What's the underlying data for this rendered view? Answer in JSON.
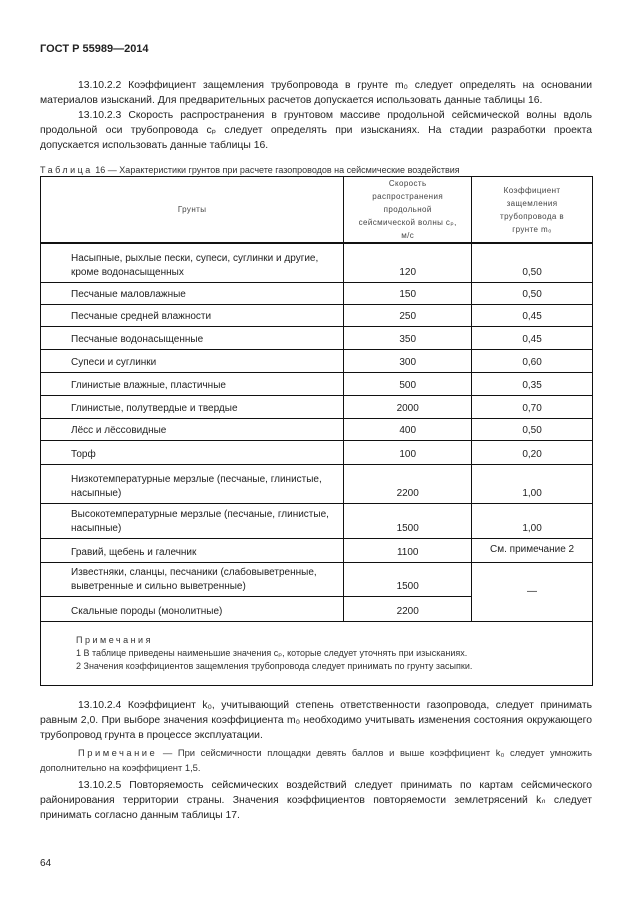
{
  "header": "ГОСТ Р 55989—2014",
  "paragraphs": {
    "p1": "13.10.2.2 Коэффициент защемления трубопровода в грунте m₀ следует определять на основании материалов изысканий. Для предварительных расчетов допускается использовать данные таблицы 16.",
    "p2": "13.10.2.3 Скорость распространения в грунтовом массиве продольной сейсмической волны вдоль продольной оси трубопровода cₚ следует определять при изысканиях. На стадии разработки проекта допускается использовать данные таблицы 16.",
    "p3": "13.10.2.4 Коэффициент k₀, учитывающий степень ответственности газопровода, следует принимать равным 2,0. При выборе значения коэффициента m₀ необходимо учитывать изменения состояния окружающего трубопровод грунта в процессе эксплуатации.",
    "note_label": "Примечание",
    "note_text": " — При сейсмичности площадки девять баллов и выше коэффициент k₀ следует умножить дополнительно на коэффициент 1,5.",
    "p4": "13.10.2.5 Повторяемость сейсмических воздействий следует принимать по картам сейсмического районирования территории страны. Значения коэффициентов повторяемости землетрясений kₙ следует принимать согласно данным таблицы 17."
  },
  "table": {
    "caption_label": "Таблица",
    "caption_text": " 16 — Характеристики грунтов при расчете газопроводов на сейсмические воздействия",
    "headers": [
      "Грунты",
      "Скорость распространения продольной сейсмической волны cₚ, м/с",
      "Коэффициент защемления трубопровода в грунте m₀"
    ],
    "rows": [
      [
        "Насыпные, рыхлые пески, супеси, суглинки и другие, кроме водонасыщенных",
        "120",
        "0,50"
      ],
      [
        "Песчаные маловлажные",
        "150",
        "0,50"
      ],
      [
        "Песчаные средней влажности",
        "250",
        "0,45"
      ],
      [
        "Песчаные водонасыщенные",
        "350",
        "0,45"
      ],
      [
        "Супеси и суглинки",
        "300",
        "0,60"
      ],
      [
        "Глинистые влажные, пластичные",
        "500",
        "0,35"
      ],
      [
        "Глинистые, полутвердые и твердые",
        "2000",
        "0,70"
      ],
      [
        "Лёсс и лёссовидные",
        "400",
        "0,50"
      ],
      [
        "Торф",
        "100",
        "0,20"
      ],
      [
        "Низкотемпературные мерзлые (песчаные, глинистые, насыпные)",
        "2200",
        "1,00"
      ],
      [
        "Высокотемпературные мерзлые (песчаные, глинистые, насыпные)",
        "1500",
        "1,00"
      ],
      [
        "Гравий, щебень и галечник",
        "1100",
        "См. примечание 2"
      ],
      [
        "Известняки, сланцы, песчаники (слабовыветренные, выветренные и сильно выветренные)",
        "1500",
        "—"
      ],
      [
        "Скальные породы (монолитные)",
        "2200",
        ""
      ]
    ],
    "notes_title": "Примечания",
    "notes": [
      "1 В таблице приведены наименьшие значения cₚ, которые следует уточнять при изысканиях.",
      "2 Значения коэффициентов защемления трубопровода следует принимать по грунту засыпки."
    ]
  },
  "page_number": "64"
}
